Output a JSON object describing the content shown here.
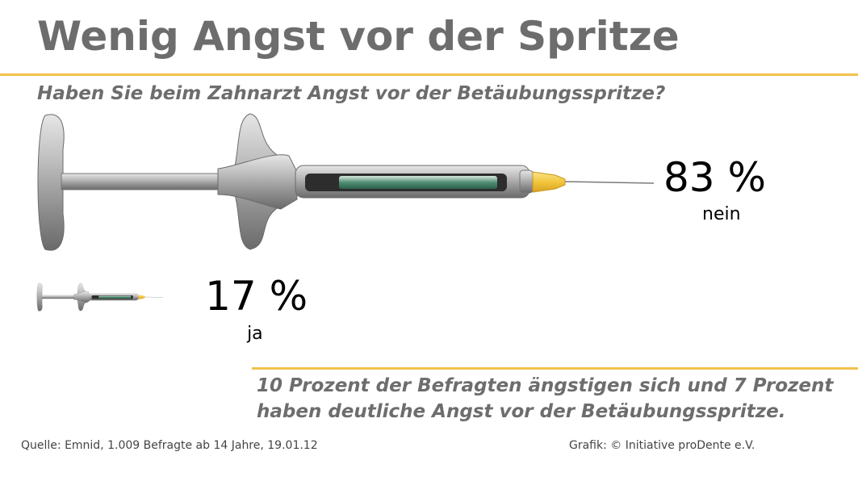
{
  "header": {
    "title": "Wenig Angst vor der Spritze",
    "question": "Haben Sie beim Zahnarzt Angst vor der Betäubungsspritze?"
  },
  "chart_data": {
    "type": "bar",
    "categories": [
      "nein",
      "ja"
    ],
    "values": [
      83,
      17
    ],
    "value_labels": [
      "83 %",
      "17 %"
    ],
    "unit": "%",
    "mark": "syringe-pictogram",
    "colors": {
      "accent_rule": "#f2c24e",
      "needle_hub": "#f5d04a",
      "metal": "#a9a9a9"
    }
  },
  "note": {
    "line1": "10 Prozent der Befragten ängstigen sich und 7 Prozent",
    "line2": "haben deutliche Angst vor der Betäubungsspritze."
  },
  "footer": {
    "source": "Quelle: Emnid, 1.009 Befragte ab 14 Jahre, 19.01.12",
    "credit": "Grafik: © Initiative proDente e.V."
  }
}
